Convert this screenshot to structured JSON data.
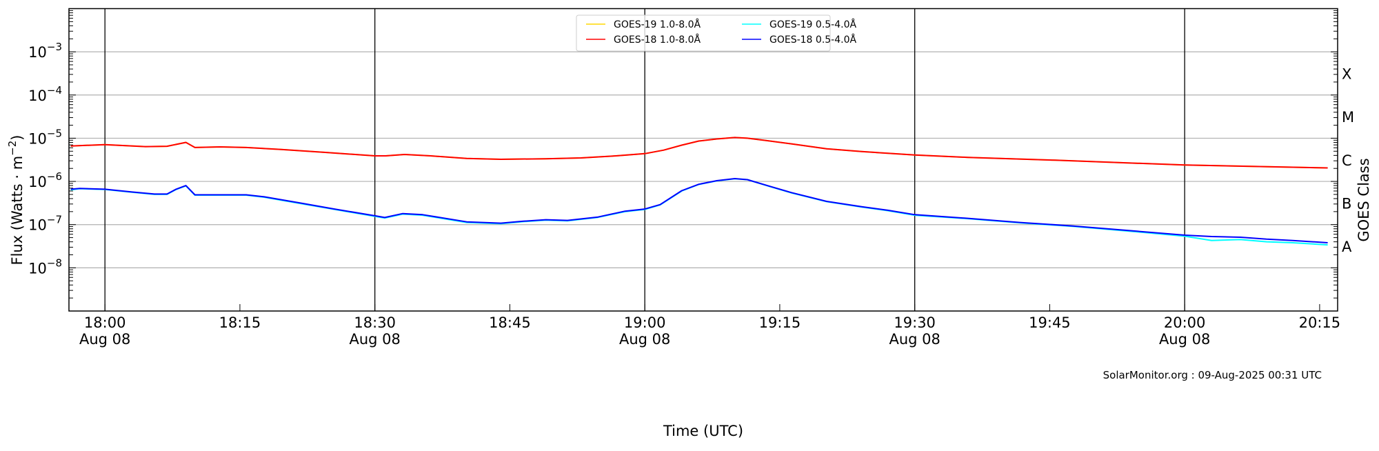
{
  "chart_data": {
    "type": "line",
    "xlabel": "Time (UTC)",
    "ylabel": "Flux (Watts · m",
    "ylabel_exp": "−2",
    "ylabel_close": ")",
    "y2label": "GOES Class",
    "yscale": "log",
    "ylim_log10": [
      -9,
      -2
    ],
    "xlim_minutes_from_1800": [
      -4,
      137
    ],
    "grid": "horizontal at decades",
    "legend_position": "top-center",
    "watermark": "SolarMonitor.org : 09-Aug-2025 00:31 UTC",
    "x_ticks": [
      {
        "t": 0,
        "time": "18:00",
        "date": "Aug 08",
        "major": true
      },
      {
        "t": 15,
        "time": "18:15",
        "date": "",
        "major": false
      },
      {
        "t": 30,
        "time": "18:30",
        "date": "Aug 08",
        "major": true
      },
      {
        "t": 45,
        "time": "18:45",
        "date": "",
        "major": false
      },
      {
        "t": 60,
        "time": "19:00",
        "date": "Aug 08",
        "major": true
      },
      {
        "t": 75,
        "time": "19:15",
        "date": "",
        "major": false
      },
      {
        "t": 90,
        "time": "19:30",
        "date": "Aug 08",
        "major": true
      },
      {
        "t": 105,
        "time": "19:45",
        "date": "",
        "major": false
      },
      {
        "t": 120,
        "time": "20:00",
        "date": "Aug 08",
        "major": true
      },
      {
        "t": 135,
        "time": "20:15",
        "date": "",
        "major": false
      }
    ],
    "y_ticks": [
      {
        "log": -3,
        "base": "10",
        "exp": "−3"
      },
      {
        "log": -4,
        "base": "10",
        "exp": "−4"
      },
      {
        "log": -5,
        "base": "10",
        "exp": "−5"
      },
      {
        "log": -6,
        "base": "10",
        "exp": "−6"
      },
      {
        "log": -7,
        "base": "10",
        "exp": "−7"
      },
      {
        "log": -8,
        "base": "10",
        "exp": "−8"
      }
    ],
    "goes_classes": [
      {
        "log": -3.5,
        "label": "X"
      },
      {
        "log": -4.5,
        "label": "M"
      },
      {
        "log": -5.5,
        "label": "C"
      },
      {
        "log": -6.5,
        "label": "B"
      },
      {
        "log": -7.5,
        "label": "A"
      }
    ],
    "series": [
      {
        "name": "GOES-19 1.0-8.0Å",
        "color": "#ffd700",
        "t": [
          -3.8,
          0,
          4.5,
          6.9,
          9,
          10,
          12.8,
          15.7,
          19.6,
          24.5,
          30,
          31.2,
          33.3,
          36.2,
          40.2,
          44,
          49,
          52.9,
          56.8,
          60,
          62.1,
          64.1,
          66,
          68,
          70,
          71.4,
          73.4,
          76.3,
          80.2,
          84.1,
          90,
          95.9,
          105.6,
          120,
          135.9
        ],
        "flux": [
          6.6e-06,
          7.1e-06,
          6.4e-06,
          6.5e-06,
          8e-06,
          6.1e-06,
          6.3e-06,
          6.1e-06,
          5.5e-06,
          4.7e-06,
          3.9e-06,
          3.9e-06,
          4.2e-06,
          3.9e-06,
          3.4e-06,
          3.25e-06,
          3.35e-06,
          3.5e-06,
          3.9e-06,
          4.4e-06,
          5.3e-06,
          6.9e-06,
          8.6e-06,
          9.6e-06,
          1.04e-05,
          1e-05,
          8.9e-06,
          7.4e-06,
          5.7e-06,
          4.9e-06,
          4.1e-06,
          3.6e-06,
          3.1e-06,
          2.4e-06,
          2.05e-06
        ]
      },
      {
        "name": "GOES-19 0.5-4.0Å",
        "color": "#00ffff",
        "t": [
          -3.8,
          -2.8,
          0,
          3,
          5.5,
          6.9,
          7.9,
          9,
          10,
          11.8,
          15.7,
          17.7,
          21.6,
          25.5,
          30,
          31.1,
          33.1,
          35.3,
          40.2,
          44,
          46.5,
          49,
          51.4,
          54.8,
          57.8,
          60,
          61.7,
          64.1,
          66,
          68,
          70,
          71.4,
          73.9,
          76.3,
          80.2,
          84.1,
          87,
          90,
          95.9,
          101.7,
          107.6,
          113.4,
          120,
          123,
          126.2,
          129.1,
          132,
          135.9
        ],
        "flux": [
          6.4e-07,
          6.8e-07,
          6.5e-07,
          5.6e-07,
          5e-07,
          5e-07,
          6.5e-07,
          7.9e-07,
          4.8e-07,
          4.8e-07,
          4.8e-07,
          4.3e-07,
          3.1e-07,
          2.25e-07,
          1.55e-07,
          1.42e-07,
          1.75e-07,
          1.65e-07,
          1.12e-07,
          1.05e-07,
          1.17e-07,
          1.27e-07,
          1.22e-07,
          1.47e-07,
          2e-07,
          2.25e-07,
          2.85e-07,
          6e-07,
          8.5e-07,
          1.03e-06,
          1.15e-06,
          1.1e-06,
          7.6e-07,
          5.4e-07,
          3.4e-07,
          2.55e-07,
          2.1e-07,
          1.65e-07,
          1.37e-07,
          1.1e-07,
          9.1e-08,
          7.2e-08,
          5.4e-08,
          4.3e-08,
          4.5e-08,
          4e-08,
          3.8e-08,
          3.4e-08
        ]
      },
      {
        "name": "GOES-18 1.0-8.0Å",
        "color": "#ff0000",
        "t": [
          -3.8,
          0,
          4.5,
          6.9,
          9,
          10,
          12.8,
          15.7,
          19.6,
          24.5,
          30,
          31.2,
          33.3,
          36.2,
          40.2,
          44,
          49,
          52.9,
          56.8,
          60,
          62.1,
          64.1,
          66,
          68,
          70,
          71.4,
          73.4,
          76.3,
          80.2,
          84.1,
          90,
          95.9,
          105.6,
          120,
          135.9
        ],
        "flux": [
          6.6e-06,
          7.1e-06,
          6.4e-06,
          6.5e-06,
          8e-06,
          6.1e-06,
          6.3e-06,
          6.1e-06,
          5.5e-06,
          4.7e-06,
          3.9e-06,
          3.9e-06,
          4.2e-06,
          3.9e-06,
          3.4e-06,
          3.25e-06,
          3.35e-06,
          3.5e-06,
          3.9e-06,
          4.4e-06,
          5.3e-06,
          6.9e-06,
          8.6e-06,
          9.6e-06,
          1.04e-05,
          1e-05,
          8.9e-06,
          7.4e-06,
          5.7e-06,
          4.9e-06,
          4.1e-06,
          3.6e-06,
          3.1e-06,
          2.4e-06,
          2.05e-06
        ]
      },
      {
        "name": "GOES-18 0.5-4.0Å",
        "color": "#0000ff",
        "t": [
          -3.8,
          -2.8,
          0,
          3,
          5.5,
          6.9,
          7.9,
          9,
          10,
          11.8,
          15.7,
          17.7,
          21.6,
          25.5,
          30,
          31.1,
          33.1,
          35.3,
          40.2,
          44,
          46.5,
          49,
          51.4,
          54.8,
          57.8,
          60,
          61.7,
          64.1,
          66,
          68,
          70,
          71.4,
          73.9,
          76.3,
          80.2,
          84.1,
          87,
          90,
          95.9,
          101.7,
          107.6,
          113.4,
          120,
          123,
          126.2,
          129.1,
          132,
          135.9
        ],
        "flux": [
          6.6e-07,
          6.9e-07,
          6.6e-07,
          5.7e-07,
          5.1e-07,
          5.1e-07,
          6.6e-07,
          8e-07,
          4.9e-07,
          4.9e-07,
          4.9e-07,
          4.4e-07,
          3.2e-07,
          2.3e-07,
          1.6e-07,
          1.46e-07,
          1.8e-07,
          1.7e-07,
          1.16e-07,
          1.08e-07,
          1.2e-07,
          1.3e-07,
          1.25e-07,
          1.5e-07,
          2.05e-07,
          2.3e-07,
          2.9e-07,
          6.1e-07,
          8.6e-07,
          1.04e-06,
          1.16e-06,
          1.1e-06,
          7.7e-07,
          5.5e-07,
          3.45e-07,
          2.6e-07,
          2.15e-07,
          1.7e-07,
          1.4e-07,
          1.12e-07,
          9.3e-08,
          7.4e-08,
          5.7e-08,
          5.3e-08,
          5.1e-08,
          4.6e-08,
          4.3e-08,
          3.8e-08
        ]
      }
    ],
    "legend_order": [
      0,
      1,
      2,
      3
    ]
  }
}
